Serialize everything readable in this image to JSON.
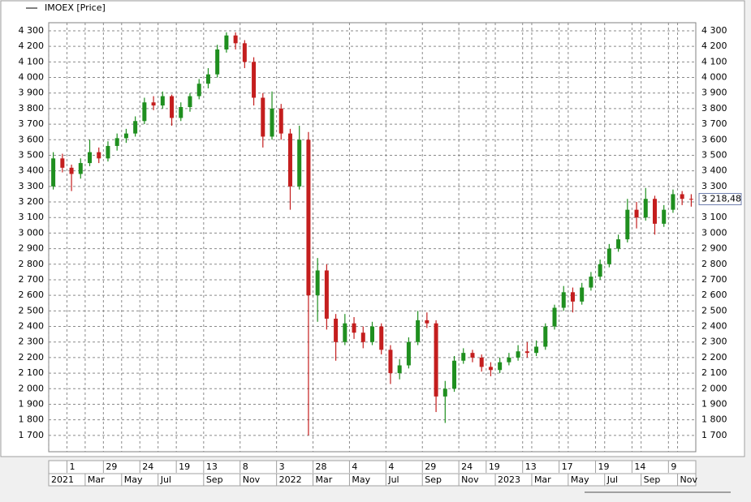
{
  "chart_data": {
    "type": "candlestick",
    "series": [
      {
        "name": "IMOEX [Price]",
        "up_color": "#1f8f1f",
        "down_color": "#c41e1e",
        "open": [
          3300,
          3480,
          3420,
          3380,
          3450,
          3520,
          3480,
          3560,
          3610,
          3640,
          3720,
          3840,
          3820,
          3880,
          3740,
          3810,
          3880,
          3960,
          4020,
          4180,
          4270,
          4220,
          4100,
          3870,
          3620,
          3800,
          3640,
          3300,
          3600,
          2600,
          2760,
          2450,
          2300,
          2420,
          2360,
          2300,
          2400,
          2250,
          2100,
          2150,
          2300,
          2440,
          2420,
          1950,
          2000,
          2180,
          2230,
          2200,
          2140,
          2120,
          2170,
          2200,
          2240,
          2230,
          2270,
          2400,
          2520,
          2620,
          2560,
          2650,
          2720,
          2800,
          2900,
          2960,
          3150,
          3100,
          3220,
          3060,
          3150,
          3250,
          3220
        ],
        "high": [
          3520,
          3510,
          3440,
          3480,
          3600,
          3550,
          3590,
          3640,
          3670,
          3750,
          3870,
          3880,
          3910,
          3890,
          3840,
          3900,
          3990,
          4060,
          4210,
          4290,
          4290,
          4240,
          4130,
          3900,
          3910,
          3830,
          3670,
          3690,
          3650,
          2840,
          2800,
          2480,
          2480,
          2460,
          2400,
          2430,
          2420,
          2280,
          2190,
          2330,
          2500,
          2490,
          2440,
          2050,
          2210,
          2260,
          2250,
          2220,
          2170,
          2200,
          2230,
          2280,
          2300,
          2310,
          2420,
          2540,
          2660,
          2650,
          2680,
          2750,
          2830,
          2930,
          2990,
          3220,
          3200,
          3290,
          3240,
          3180,
          3280,
          3270,
          3250
        ],
        "low": [
          3280,
          3390,
          3270,
          3350,
          3430,
          3450,
          3460,
          3530,
          3580,
          3620,
          3700,
          3790,
          3800,
          3690,
          3720,
          3780,
          3860,
          3930,
          4000,
          4160,
          4180,
          4060,
          3820,
          3550,
          3600,
          3600,
          3150,
          3280,
          1700,
          2430,
          2380,
          2180,
          2280,
          2320,
          2260,
          2280,
          2220,
          2030,
          2060,
          2130,
          2280,
          2390,
          1850,
          1780,
          1980,
          2160,
          2170,
          2110,
          2080,
          2100,
          2150,
          2180,
          2200,
          2210,
          2250,
          2380,
          2500,
          2490,
          2540,
          2630,
          2700,
          2780,
          2880,
          2940,
          3030,
          3080,
          2990,
          3040,
          3130,
          3180,
          3170
        ],
        "close": [
          3480,
          3420,
          3380,
          3450,
          3520,
          3480,
          3560,
          3610,
          3640,
          3720,
          3840,
          3820,
          3880,
          3740,
          3810,
          3880,
          3960,
          4020,
          4180,
          4270,
          4220,
          4100,
          3870,
          3620,
          3800,
          3640,
          3300,
          3600,
          2600,
          2760,
          2450,
          2300,
          2420,
          2360,
          2300,
          2400,
          2250,
          2100,
          2150,
          2300,
          2440,
          2420,
          1950,
          2000,
          2180,
          2230,
          2200,
          2140,
          2120,
          2170,
          2200,
          2240,
          2230,
          2270,
          2400,
          2520,
          2620,
          2560,
          2650,
          2720,
          2800,
          2900,
          2960,
          3150,
          3100,
          3220,
          3060,
          3150,
          3250,
          3220,
          3218.48
        ]
      }
    ],
    "last_label": "3 218,48",
    "categories": [
      null,
      null,
      "1",
      null,
      null,
      null,
      "29",
      null,
      null,
      null,
      "24",
      null,
      null,
      null,
      "19",
      null,
      null,
      "13",
      null,
      null,
      null,
      "8",
      null,
      null,
      null,
      "3",
      null,
      null,
      null,
      "28",
      null,
      null,
      null,
      "4",
      null,
      null,
      null,
      "4",
      null,
      null,
      null,
      "29",
      null,
      null,
      null,
      "24",
      null,
      null,
      "19",
      null,
      null,
      null,
      "13",
      null,
      null,
      null,
      "17",
      null,
      null,
      null,
      "19",
      null,
      null,
      null,
      "14",
      null,
      null,
      null,
      "9",
      null,
      null
    ],
    "periods": [
      "2021",
      null,
      null,
      null,
      "Mar",
      null,
      null,
      null,
      "May",
      null,
      null,
      null,
      "Jul",
      null,
      null,
      null,
      null,
      "Sep",
      null,
      null,
      null,
      "Nov",
      null,
      null,
      null,
      "2022",
      null,
      null,
      null,
      "Mar",
      null,
      null,
      null,
      "May",
      null,
      null,
      null,
      "Jul",
      null,
      null,
      null,
      "Sep",
      null,
      null,
      null,
      "Nov",
      null,
      null,
      null,
      "2023",
      null,
      null,
      null,
      "Mar",
      null,
      null,
      null,
      "May",
      null,
      null,
      null,
      "Jul",
      null,
      null,
      null,
      "Sep",
      null,
      null,
      null,
      "Nov",
      null
    ],
    "ylim": [
      1595,
      4352
    ],
    "yticks": [
      {
        "value": 1700,
        "label": "1 700"
      },
      {
        "value": 1800,
        "label": "1 800"
      },
      {
        "value": 1900,
        "label": "1 900"
      },
      {
        "value": 2000,
        "label": "2 000"
      },
      {
        "value": 2100,
        "label": "2 100"
      },
      {
        "value": 2200,
        "label": "2 200"
      },
      {
        "value": 2300,
        "label": "2 300"
      },
      {
        "value": 2400,
        "label": "2 400"
      },
      {
        "value": 2500,
        "label": "2 500"
      },
      {
        "value": 2600,
        "label": "2 600"
      },
      {
        "value": 2700,
        "label": "2 700"
      },
      {
        "value": 2800,
        "label": "2 800"
      },
      {
        "value": 2900,
        "label": "2 900"
      },
      {
        "value": 3000,
        "label": "3 000"
      },
      {
        "value": 3100,
        "label": "3 100"
      },
      {
        "value": 3200,
        "label": "3 200"
      },
      {
        "value": 3300,
        "label": "3 300"
      },
      {
        "value": 3400,
        "label": "3 400"
      },
      {
        "value": 3500,
        "label": "3 500"
      },
      {
        "value": 3600,
        "label": "3 600"
      },
      {
        "value": 3700,
        "label": "3 700"
      },
      {
        "value": 3800,
        "label": "3 800"
      },
      {
        "value": 3900,
        "label": "3 900"
      },
      {
        "value": 4000,
        "label": "4 000"
      },
      {
        "value": 4100,
        "label": "4 100"
      },
      {
        "value": 4200,
        "label": "4 200"
      },
      {
        "value": 4300,
        "label": "4 300"
      }
    ],
    "grid": true
  }
}
